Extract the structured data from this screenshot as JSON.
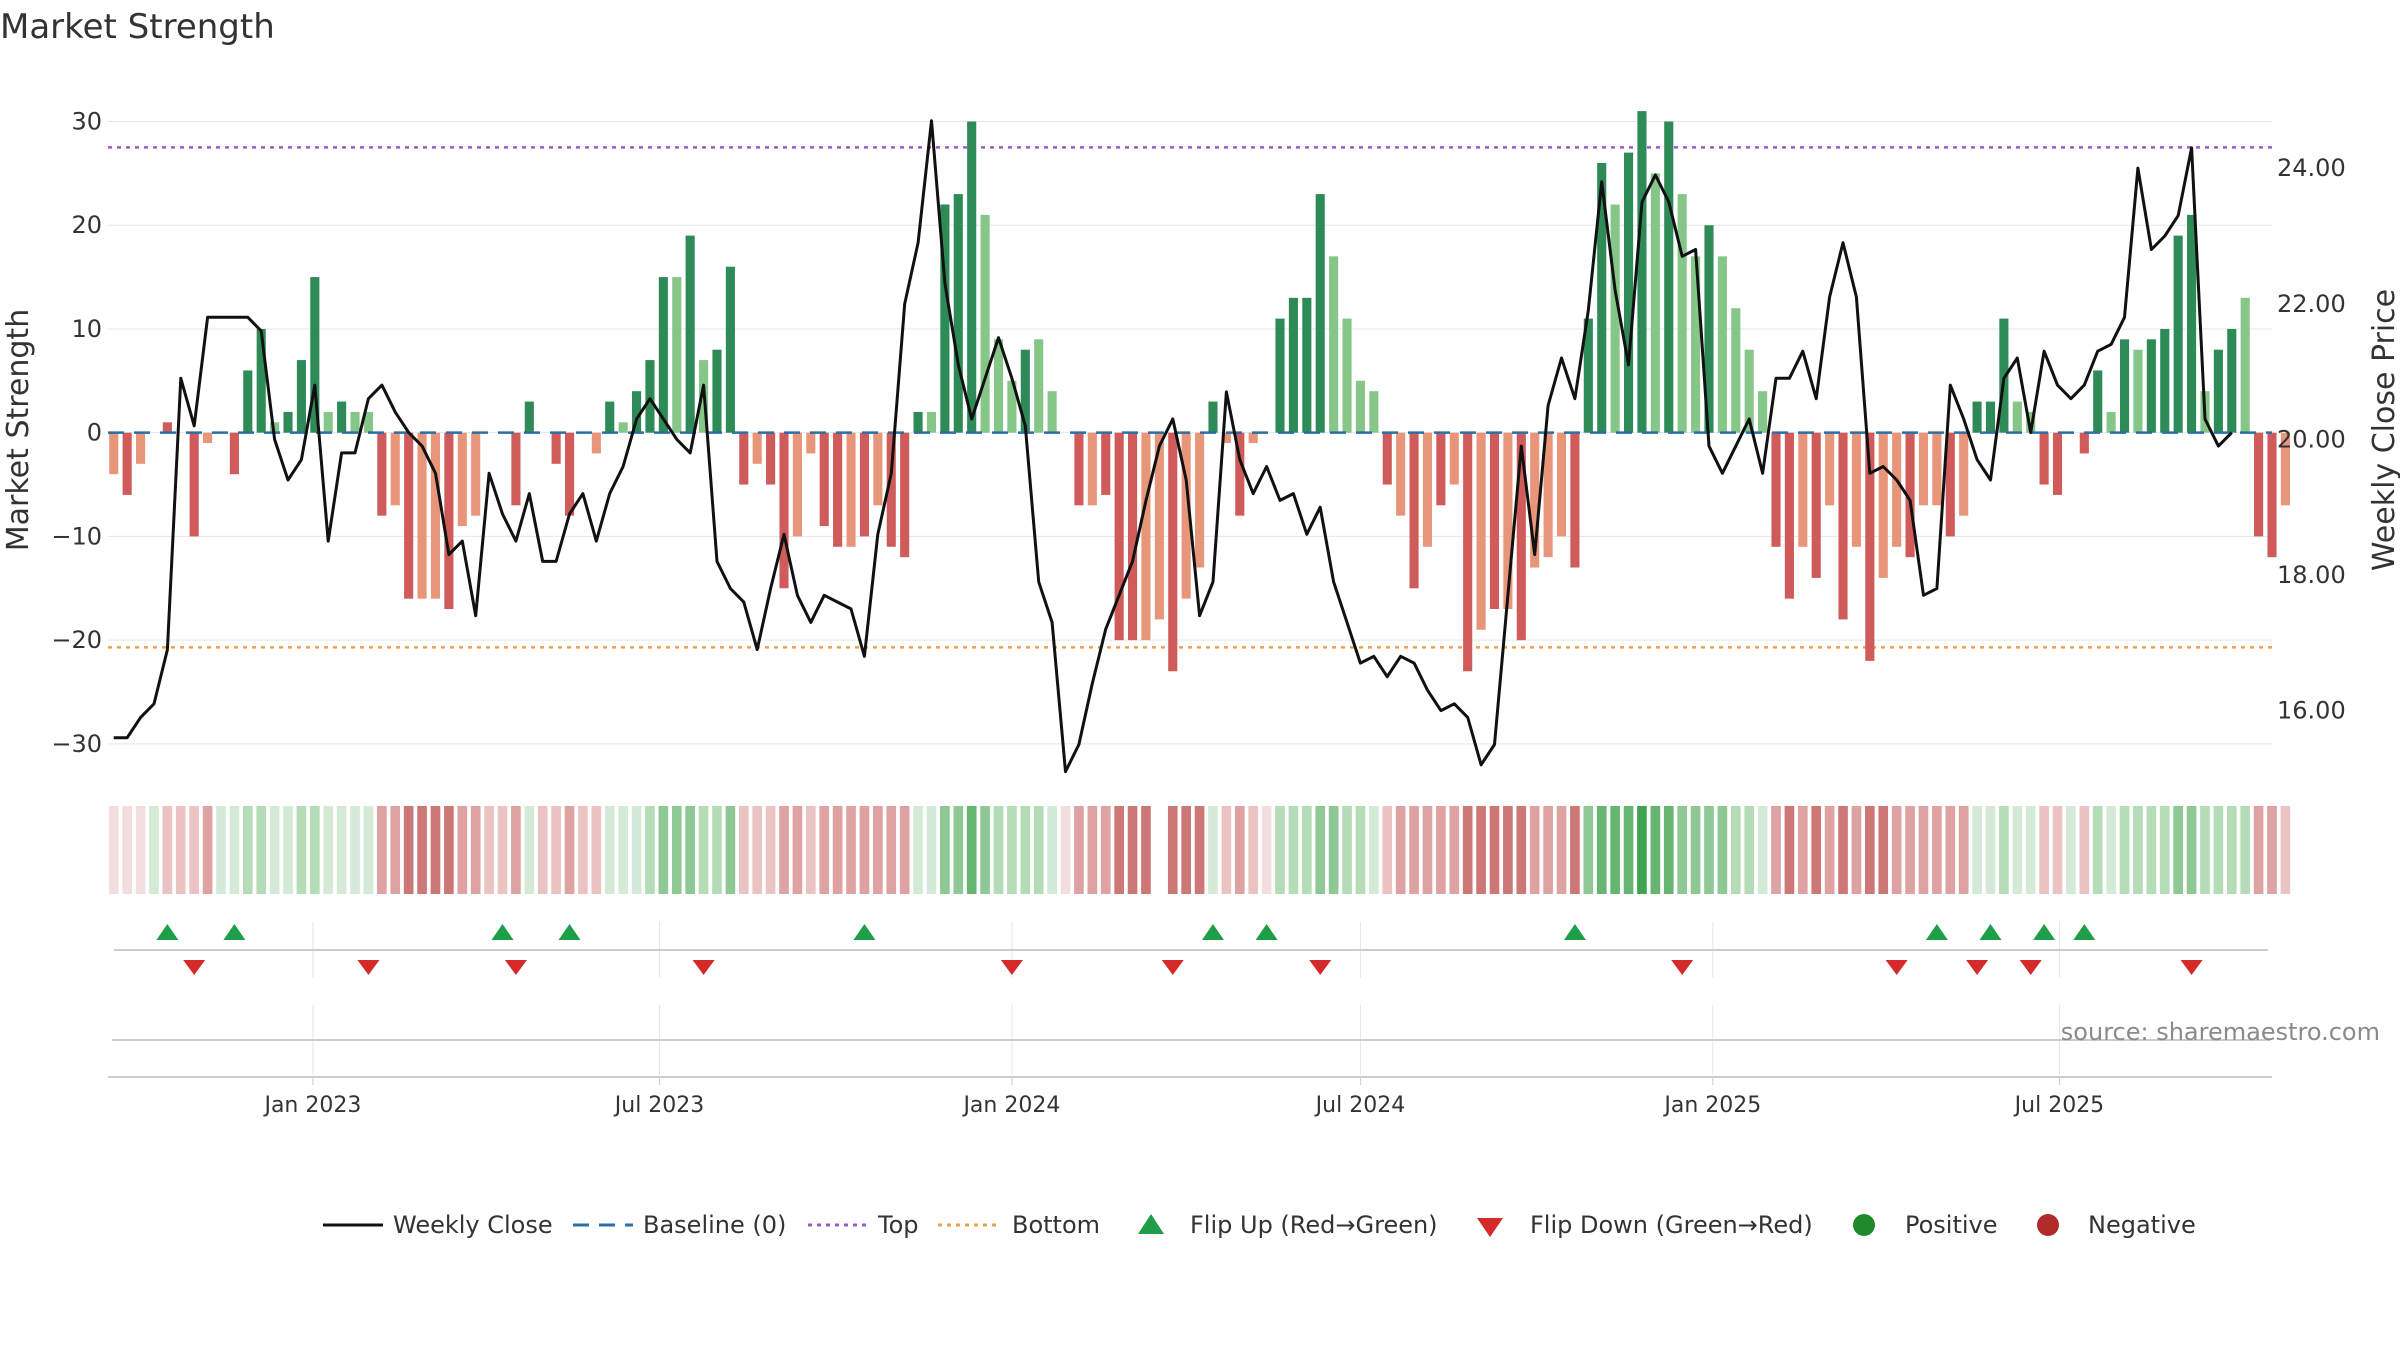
{
  "chart_data": {
    "type": "bar",
    "title": "Market Strength",
    "ylabel": "Market Strength",
    "y2label": "Weekly Close Price",
    "ylim": [
      -33,
      34
    ],
    "y2lim": [
      15.05,
      25.3
    ],
    "yticks": [
      30,
      20,
      10,
      0,
      -10,
      -20,
      -30
    ],
    "yticklabels": [
      "30",
      "20",
      "10",
      "0",
      "−10",
      "−20",
      "−30"
    ],
    "y2ticks": [
      24,
      22,
      20,
      18,
      16
    ],
    "y2ticklabels": [
      "24.00",
      "22.00",
      "20.00",
      "18.00",
      "16.00"
    ],
    "x_start": "2022-09-19",
    "week_days": 7,
    "xlim": [
      "2022-09-16",
      "2025-10-20"
    ],
    "xticks": [
      {
        "date": "2023-01-01",
        "label": "Jan 2023"
      },
      {
        "date": "2023-07-01",
        "label": "Jul 2023"
      },
      {
        "date": "2024-01-01",
        "label": "Jan 2024"
      },
      {
        "date": "2024-07-01",
        "label": "Jul 2024"
      },
      {
        "date": "2025-01-01",
        "label": "Jan 2025"
      },
      {
        "date": "2025-07-01",
        "label": "Jul 2025"
      }
    ],
    "top_line": 27.5,
    "bottom_line": -20.7,
    "baseline": 0,
    "strength": [
      -4,
      -6,
      -3,
      0,
      1,
      0,
      -10,
      -1,
      0,
      -4,
      6,
      10,
      1,
      2,
      7,
      15,
      2,
      3,
      2,
      2,
      -8,
      -7,
      -16,
      -16,
      -16,
      -17,
      -9,
      -8,
      0,
      0,
      -7,
      3,
      0,
      -3,
      -8,
      0,
      -2,
      3,
      1,
      4,
      7,
      15,
      15,
      19,
      7,
      8,
      16,
      -5,
      -3,
      -5,
      -15,
      -10,
      -2,
      -9,
      -11,
      -11,
      -10,
      -7,
      -11,
      -12,
      2,
      2,
      22,
      23,
      30,
      21,
      9,
      5,
      8,
      9,
      4,
      0,
      -7,
      -7,
      -6,
      -20,
      -20,
      -20,
      -18,
      -23,
      -16,
      -13,
      3,
      -1,
      -8,
      -1,
      0,
      11,
      13,
      13,
      23,
      17,
      11,
      5,
      4,
      -5,
      -8,
      -15,
      -11,
      -7,
      -5,
      -23,
      -19,
      -17,
      -17,
      -20,
      -13,
      -12,
      -10,
      -13,
      11,
      26,
      22,
      27,
      31,
      25,
      30,
      23,
      17,
      20,
      17,
      12,
      8,
      4,
      -11,
      -16,
      -11,
      -14,
      -7,
      -18,
      -11,
      -22,
      -14,
      -11,
      -12,
      -7,
      -7,
      -10,
      -8,
      3,
      3,
      11,
      3,
      2,
      -5,
      -6,
      0,
      -2,
      6,
      2,
      9,
      8,
      9,
      10,
      19,
      21,
      4,
      8,
      10,
      13,
      -10,
      -12,
      -7
    ],
    "strength_class": [
      "n",
      "N",
      "n",
      "p",
      "N",
      "n",
      "N",
      "n",
      "p",
      "N",
      "P",
      "P",
      "p",
      "P",
      "P",
      "P",
      "p",
      "P",
      "p",
      "p",
      "N",
      "n",
      "N",
      "n",
      "n",
      "N",
      "n",
      "n",
      "p",
      "n",
      "N",
      "P",
      "n",
      "N",
      "N",
      "n",
      "n",
      "P",
      "p",
      "P",
      "P",
      "P",
      "p",
      "P",
      "p",
      "P",
      "P",
      "N",
      "n",
      "N",
      "N",
      "n",
      "n",
      "N",
      "N",
      "n",
      "N",
      "n",
      "N",
      "N",
      "P",
      "p",
      "P",
      "P",
      "P",
      "p",
      "p",
      "p",
      "P",
      "p",
      "p",
      "n",
      "N",
      "n",
      "N",
      "N",
      "N",
      "n",
      "n",
      "N",
      "n",
      "n",
      "P",
      "n",
      "N",
      "n",
      "p",
      "P",
      "P",
      "P",
      "P",
      "p",
      "p",
      "p",
      "p",
      "N",
      "n",
      "N",
      "n",
      "N",
      "n",
      "N",
      "n",
      "N",
      "n",
      "N",
      "n",
      "n",
      "n",
      "N",
      "P",
      "P",
      "p",
      "P",
      "P",
      "p",
      "P",
      "p",
      "p",
      "P",
      "p",
      "p",
      "p",
      "p",
      "N",
      "N",
      "n",
      "N",
      "n",
      "N",
      "n",
      "N",
      "n",
      "n",
      "N",
      "n",
      "n",
      "N",
      "n",
      "P",
      "P",
      "P",
      "p",
      "p",
      "N",
      "N",
      "p",
      "N",
      "P",
      "p",
      "P",
      "p",
      "P",
      "P",
      "P",
      "P",
      "p",
      "P",
      "P",
      "p",
      "N",
      "N",
      "n"
    ],
    "heat_strip": [
      "l0",
      "l0",
      "l0",
      "g0",
      "r0",
      "r0",
      "r0",
      "r1",
      "g0",
      "g0",
      "g1",
      "g1",
      "g0",
      "g0",
      "g1",
      "g1",
      "g0",
      "g0",
      "g0",
      "g0",
      "r1",
      "r1",
      "r2",
      "r2",
      "r2",
      "r2",
      "r1",
      "r1",
      "r0",
      "r0",
      "r1",
      "g0",
      "r0",
      "r0",
      "r1",
      "r0",
      "r0",
      "g0",
      "g0",
      "g0",
      "g1",
      "g2",
      "g2",
      "g2",
      "g1",
      "g1",
      "g2",
      "r0",
      "r0",
      "r0",
      "r1",
      "r1",
      "r0",
      "r1",
      "r1",
      "r1",
      "r1",
      "r1",
      "r1",
      "r1",
      "g0",
      "g0",
      "g2",
      "g2",
      "g3",
      "g2",
      "g1",
      "g1",
      "g1",
      "g1",
      "g0",
      "l0",
      "r1",
      "r1",
      "r1",
      "r2",
      "r2",
      "r2",
      "gap",
      "r2",
      "r2",
      "r2",
      "g0",
      "r0",
      "r1",
      "r0",
      "l0",
      "g1",
      "g1",
      "g1",
      "g2",
      "g2",
      "g1",
      "g1",
      "g0",
      "r0",
      "r1",
      "r1",
      "r1",
      "r1",
      "r1",
      "r2",
      "r2",
      "r2",
      "r2",
      "r2",
      "r1",
      "r1",
      "r1",
      "r2",
      "g2",
      "g3",
      "g3",
      "g3",
      "g4",
      "g3",
      "g3",
      "g2",
      "g2",
      "g2",
      "g2",
      "g1",
      "g1",
      "g0",
      "r1",
      "r2",
      "r1",
      "r2",
      "r1",
      "r2",
      "r1",
      "r2",
      "r2",
      "r1",
      "r1",
      "r1",
      "r1",
      "r1",
      "r1",
      "g0",
      "g0",
      "g1",
      "g0",
      "g0",
      "r0",
      "r0",
      "g0",
      "r0",
      "g1",
      "g0",
      "g1",
      "g1",
      "g1",
      "g1",
      "g2",
      "g2",
      "g1",
      "g1",
      "g1",
      "g1",
      "r1",
      "r1",
      "r0"
    ],
    "close": [
      15.6,
      15.6,
      15.9,
      16.1,
      16.9,
      20.9,
      20.2,
      21.8,
      21.8,
      21.8,
      21.8,
      21.6,
      20.0,
      19.4,
      19.7,
      20.8,
      18.5,
      19.8,
      19.8,
      20.6,
      20.8,
      20.4,
      20.1,
      19.9,
      19.5,
      18.3,
      18.5,
      17.4,
      19.5,
      18.9,
      18.5,
      19.2,
      18.2,
      18.2,
      18.9,
      19.2,
      18.5,
      19.2,
      19.6,
      20.3,
      20.6,
      20.3,
      20.0,
      19.8,
      20.8,
      18.2,
      17.8,
      17.6,
      16.9,
      17.8,
      18.6,
      17.7,
      17.3,
      17.7,
      17.6,
      17.5,
      16.8,
      18.6,
      19.5,
      22.0,
      22.9,
      24.7,
      22.3,
      21.1,
      20.3,
      20.9,
      21.5,
      20.9,
      20.2,
      17.9,
      17.3,
      15.1,
      15.5,
      16.4,
      17.2,
      17.7,
      18.2,
      19.1,
      19.9,
      20.3,
      19.4,
      17.4,
      17.9,
      20.7,
      19.7,
      19.2,
      19.6,
      19.1,
      19.2,
      18.6,
      19.0,
      17.9,
      17.3,
      16.7,
      16.8,
      16.5,
      16.8,
      16.7,
      16.3,
      16.0,
      16.1,
      15.9,
      15.2,
      15.5,
      17.7,
      19.9,
      18.3,
      20.5,
      21.2,
      20.6,
      21.9,
      23.8,
      22.2,
      21.1,
      23.5,
      23.9,
      23.5,
      22.7,
      22.8,
      19.9,
      19.5,
      19.9,
      20.3,
      19.5,
      20.9,
      20.9,
      21.3,
      20.6,
      22.1,
      22.9,
      22.1,
      19.5,
      19.6,
      19.4,
      19.1,
      17.7,
      17.8,
      20.8,
      20.3,
      19.7,
      19.4,
      20.9,
      21.2,
      20.1,
      21.3,
      20.8,
      20.6,
      20.8,
      21.3,
      21.4,
      21.8,
      24.0,
      22.8,
      23.0,
      23.3,
      24.3,
      20.3,
      19.9,
      20.1
    ]
  },
  "flips": {
    "up": [
      4,
      9,
      29,
      34,
      56,
      82,
      86,
      109,
      136,
      140,
      144,
      147
    ],
    "down": [
      6,
      19,
      30,
      44,
      67,
      79,
      90,
      117,
      133,
      139,
      143,
      155
    ]
  },
  "legend": {
    "weekly_close": "Weekly Close",
    "baseline": "Baseline (0)",
    "top": "Top",
    "bottom": "Bottom",
    "flip_up": "Flip Up (Red→Green)",
    "flip_down": "Flip Down (Green→Red)",
    "positive": "Positive",
    "negative": "Negative"
  },
  "source": "source: sharemaestro.com",
  "colors": {
    "pos_strong": "#2e8b57",
    "pos_light": "#86c689",
    "neg_strong": "#cf5b5b",
    "neg_light": "#e8967a",
    "close_line": "#111111",
    "baseline": "#2b6ea8",
    "top": "#9b59d0",
    "bottom": "#f0a04b",
    "flip_up": "#1e9e48",
    "flip_down": "#d42a2a",
    "positive_dot": "#1f8a2b",
    "negative_dot": "#b02a2a",
    "grid": "#e6e6e6",
    "source": "#8a8a8a"
  }
}
